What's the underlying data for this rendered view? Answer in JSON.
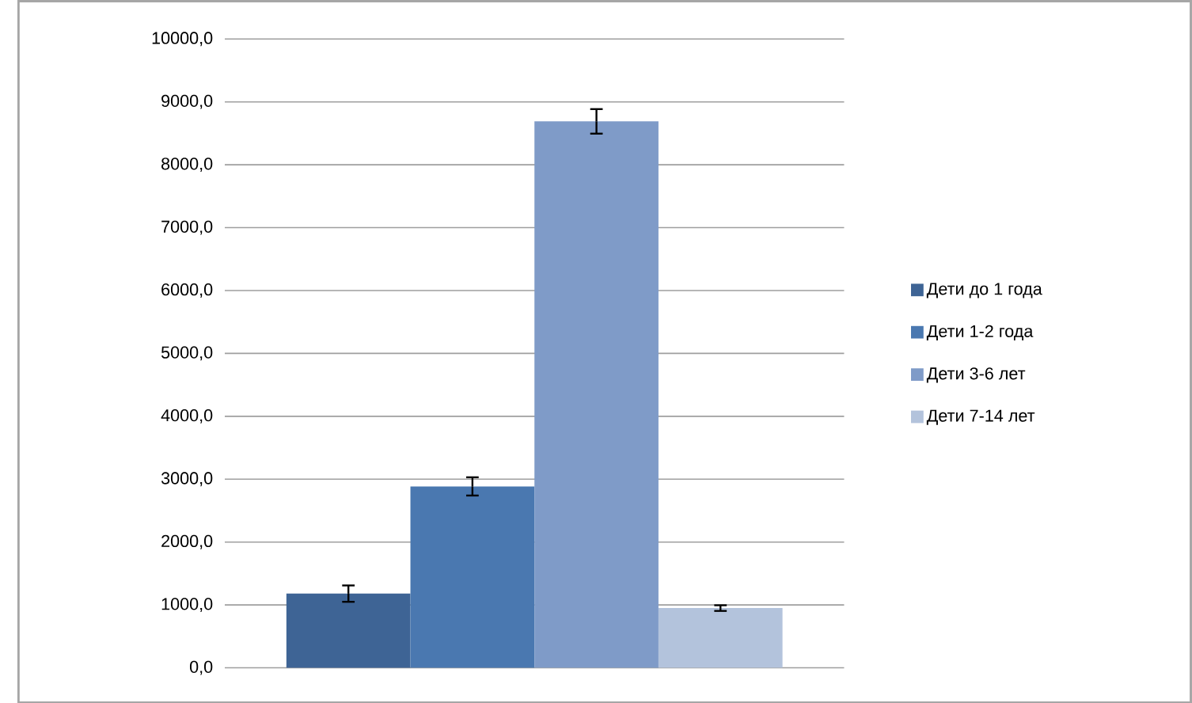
{
  "chart_data": {
    "type": "bar",
    "categories": [
      null
    ],
    "series": [
      {
        "name": "Дети до 1 года",
        "color": "#3e6495",
        "values": [
          1180
        ],
        "errors": [
          130
        ]
      },
      {
        "name": "Дети 1-2 года",
        "color": "#4a78b0",
        "values": [
          2885
        ],
        "errors": [
          145
        ]
      },
      {
        "name": "Дети  3-6 лет",
        "color": "#7f9bc8",
        "values": [
          8690
        ],
        "errors": [
          195
        ]
      },
      {
        "name": "Дети 7-14 лет",
        "color": "#b3c3dc",
        "values": [
          950
        ],
        "errors": [
          45
        ]
      }
    ],
    "ylim": [
      0,
      10000
    ],
    "yticks": [
      {
        "value": 0,
        "label": "0,0"
      },
      {
        "value": 1000,
        "label": "1000,0"
      },
      {
        "value": 2000,
        "label": "2000,0"
      },
      {
        "value": 3000,
        "label": "3000,0"
      },
      {
        "value": 4000,
        "label": "4000,0"
      },
      {
        "value": 5000,
        "label": "5000,0"
      },
      {
        "value": 6000,
        "label": "6000,0"
      },
      {
        "value": 7000,
        "label": "7000,0"
      },
      {
        "value": 8000,
        "label": "8000,0"
      },
      {
        "value": 9000,
        "label": "9000,0"
      },
      {
        "value": 10000,
        "label": "10000,0"
      }
    ],
    "grid": "y",
    "legend": "right",
    "tick_labels": "y"
  }
}
